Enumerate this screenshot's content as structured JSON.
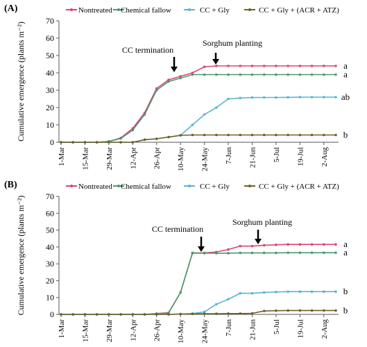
{
  "chart_data": [
    {
      "type": "line",
      "panel_label": "(A)",
      "ylabel": "Cumulative emergence (plants m⁻²)",
      "ylim": [
        0,
        70
      ],
      "yticks": [
        0,
        10,
        20,
        30,
        40,
        50,
        60,
        70
      ],
      "grid": false,
      "legend": "top",
      "tick_labels": [
        "1-Mar",
        "15-Mar",
        "29-Mar",
        "12-Apr",
        "26-Apr",
        "10-May",
        "24-May",
        "7-Jun",
        "21-Jun",
        "5-Jul",
        "19-Jul",
        "2-Aug"
      ],
      "x": [
        "1-Mar",
        "8-Mar",
        "15-Mar",
        "22-Mar",
        "29-Mar",
        "5-Apr",
        "12-Apr",
        "19-Apr",
        "26-Apr",
        "3-May",
        "10-May",
        "17-May",
        "24-May",
        "31-May",
        "7-Jun",
        "14-Jun",
        "21-Jun",
        "28-Jun",
        "5-Jul",
        "12-Jul",
        "19-Jul",
        "26-Jul",
        "2-Aug",
        "9-Aug"
      ],
      "series": [
        {
          "name": "Nontreated",
          "color": "#d9457a",
          "values": [
            0,
            0,
            0,
            0,
            0.5,
            2.5,
            8,
            17,
            31,
            36,
            38,
            40,
            43.5,
            44,
            44,
            44,
            44,
            44,
            44,
            44,
            44,
            44,
            44,
            44
          ]
        },
        {
          "name": "Chemical fallow",
          "color": "#4a9a6e",
          "values": [
            0,
            0,
            0,
            0,
            0.5,
            2.2,
            7,
            16,
            30,
            35,
            37,
            39,
            39,
            39,
            39,
            39,
            39,
            39,
            39,
            39,
            39,
            39,
            39,
            39
          ]
        },
        {
          "name": "CC + Gly",
          "color": "#5ab4d2",
          "values": [
            0,
            0,
            0,
            0,
            0,
            0,
            0,
            1.5,
            2,
            3,
            4,
            10,
            16,
            20,
            25,
            25.5,
            25.8,
            25.8,
            25.8,
            25.9,
            26,
            26,
            26,
            26
          ]
        },
        {
          "name": "CC + Gly + (ACR + ATZ)",
          "color": "#6e6028",
          "values": [
            0,
            0,
            0,
            0,
            0,
            0,
            0,
            1.5,
            2,
            3,
            4,
            4.2,
            4.2,
            4.2,
            4.2,
            4.2,
            4.2,
            4.2,
            4.2,
            4.2,
            4.2,
            4.2,
            4.2,
            4.2
          ]
        }
      ],
      "annotations": [
        {
          "text": "CC termination",
          "at": "10-May"
        },
        {
          "text": "Sorghum planting",
          "at": "31-May"
        }
      ],
      "letters": [
        "a",
        "a",
        "ab",
        "b"
      ]
    },
    {
      "type": "line",
      "panel_label": "(B)",
      "ylabel": "Cumulative emergence (plants m⁻²)",
      "ylim": [
        0,
        70
      ],
      "yticks": [
        0,
        10,
        20,
        30,
        40,
        50,
        60,
        70
      ],
      "grid": false,
      "legend": "top",
      "tick_labels": [
        "1-Mar",
        "15-Mar",
        "29-Mar",
        "12-Apr",
        "26-Apr",
        "10-May",
        "24-May",
        "7-Jun",
        "21-Jun",
        "5-Jul",
        "19-Jul",
        "2-Aug"
      ],
      "x": [
        "1-Mar",
        "8-Mar",
        "15-Mar",
        "22-Mar",
        "29-Mar",
        "5-Apr",
        "12-Apr",
        "19-Apr",
        "26-Apr",
        "3-May",
        "10-May",
        "17-May",
        "24-May",
        "31-May",
        "7-Jun",
        "14-Jun",
        "21-Jun",
        "28-Jun",
        "5-Jul",
        "12-Jul",
        "19-Jul",
        "26-Jul",
        "2-Aug",
        "9-Aug"
      ],
      "series": [
        {
          "name": "Nontreated",
          "color": "#d9457a",
          "values": [
            0,
            0,
            0,
            0,
            0,
            0,
            0,
            0,
            0.5,
            1,
            13,
            36.5,
            36.5,
            37,
            38.5,
            40.5,
            40.5,
            41,
            41.3,
            41.5,
            41.5,
            41.5,
            41.5,
            41.5
          ]
        },
        {
          "name": "Chemical fallow",
          "color": "#4a9a6e",
          "values": [
            0,
            0,
            0,
            0,
            0,
            0,
            0,
            0,
            0.3,
            0.8,
            13,
            36.3,
            36.3,
            36.3,
            36.3,
            36.5,
            36.5,
            36.5,
            36.5,
            36.6,
            36.6,
            36.6,
            36.6,
            36.6
          ]
        },
        {
          "name": "CC + Gly",
          "color": "#5ab4d2",
          "values": [
            0,
            0,
            0,
            0,
            0,
            0,
            0,
            0,
            0,
            0,
            0.2,
            0.5,
            1.5,
            6,
            9,
            12.5,
            12.5,
            13,
            13.3,
            13.5,
            13.5,
            13.5,
            13.5,
            13.5
          ]
        },
        {
          "name": "CC + Gly + (ACR + ATZ)",
          "color": "#6e6028",
          "values": [
            0,
            0,
            0,
            0,
            0,
            0,
            0,
            0,
            0,
            0,
            0.2,
            0.3,
            0.4,
            0.4,
            0.5,
            0.5,
            0.6,
            2,
            2.2,
            2.3,
            2.3,
            2.3,
            2.3,
            2.3
          ]
        }
      ],
      "annotations": [
        {
          "text": "CC termination",
          "at": "17-May"
        },
        {
          "text": "Sorghum planting",
          "at": "14-Jun"
        }
      ],
      "letters": [
        "a",
        "a",
        "b",
        "b"
      ]
    }
  ]
}
